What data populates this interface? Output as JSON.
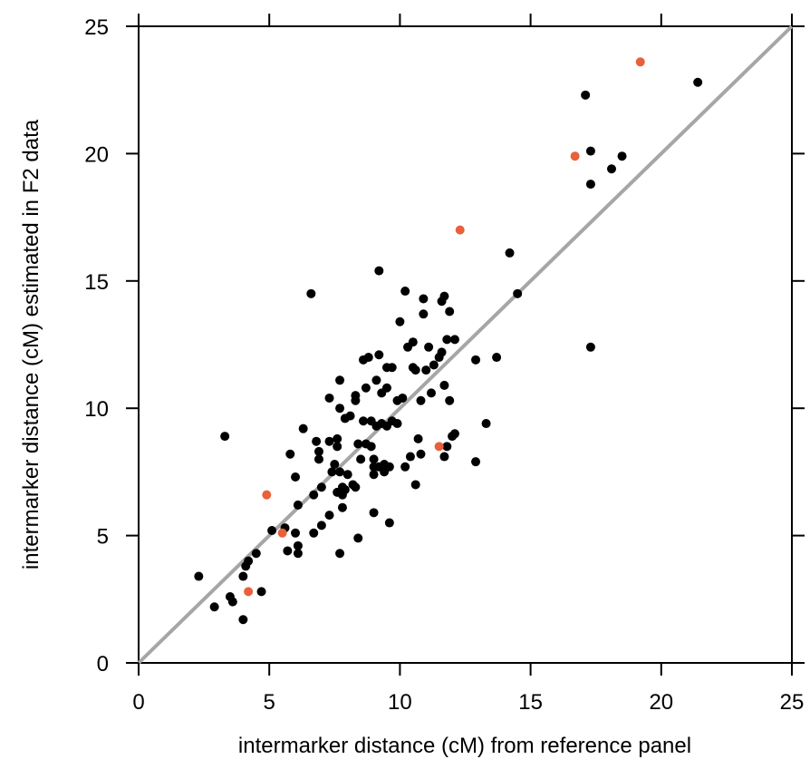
{
  "chart_data": {
    "type": "scatter",
    "title": "",
    "xlabel": "intermarker distance (cM) from reference panel",
    "ylabel": "intermarker distance (cM) estimated in F2 data",
    "xlim": [
      0,
      25
    ],
    "ylim": [
      0,
      25
    ],
    "xticks": [
      0,
      5,
      10,
      15,
      20,
      25
    ],
    "yticks": [
      0,
      5,
      10,
      15,
      20,
      25
    ],
    "xtick_labels": [
      "0",
      "5",
      "10",
      "15",
      "20",
      "25"
    ],
    "ytick_labels": [
      "0",
      "5",
      "10",
      "15",
      "20",
      "25"
    ],
    "grid": false,
    "reference_line": {
      "from": [
        0,
        0
      ],
      "to": [
        25,
        25
      ],
      "color": "#a6a6a6"
    },
    "series": [
      {
        "color": "#000000",
        "points": [
          [
            2.3,
            3.4
          ],
          [
            2.9,
            2.2
          ],
          [
            3.3,
            8.9
          ],
          [
            3.5,
            2.6
          ],
          [
            3.6,
            2.4
          ],
          [
            4.0,
            1.7
          ],
          [
            4.0,
            3.4
          ],
          [
            4.1,
            3.8
          ],
          [
            4.2,
            4.0
          ],
          [
            4.5,
            4.3
          ],
          [
            4.7,
            2.8
          ],
          [
            5.1,
            5.2
          ],
          [
            5.6,
            5.3
          ],
          [
            5.7,
            4.4
          ],
          [
            5.8,
            8.2
          ],
          [
            6.0,
            5.1
          ],
          [
            6.0,
            7.3
          ],
          [
            6.1,
            4.6
          ],
          [
            6.1,
            4.3
          ],
          [
            6.1,
            6.2
          ],
          [
            6.3,
            9.2
          ],
          [
            6.6,
            14.5
          ],
          [
            6.7,
            6.6
          ],
          [
            6.7,
            5.1
          ],
          [
            6.8,
            8.7
          ],
          [
            6.9,
            8.0
          ],
          [
            6.9,
            8.3
          ],
          [
            7.0,
            6.9
          ],
          [
            7.0,
            5.4
          ],
          [
            7.3,
            5.8
          ],
          [
            7.3,
            10.4
          ],
          [
            7.3,
            8.7
          ],
          [
            7.4,
            7.5
          ],
          [
            7.5,
            7.8
          ],
          [
            7.6,
            8.8
          ],
          [
            7.6,
            8.5
          ],
          [
            7.6,
            6.7
          ],
          [
            7.7,
            4.3
          ],
          [
            7.7,
            7.5
          ],
          [
            7.7,
            10.0
          ],
          [
            7.7,
            11.1
          ],
          [
            7.8,
            6.9
          ],
          [
            7.8,
            6.1
          ],
          [
            7.8,
            6.6
          ],
          [
            7.9,
            9.6
          ],
          [
            7.9,
            6.8
          ],
          [
            8.0,
            7.4
          ],
          [
            8.1,
            9.7
          ],
          [
            8.2,
            7.0
          ],
          [
            8.3,
            10.5
          ],
          [
            8.3,
            10.3
          ],
          [
            8.3,
            6.9
          ],
          [
            8.4,
            4.9
          ],
          [
            8.4,
            8.6
          ],
          [
            8.5,
            8.0
          ],
          [
            8.6,
            11.9
          ],
          [
            8.6,
            9.5
          ],
          [
            8.7,
            8.6
          ],
          [
            8.7,
            10.8
          ],
          [
            8.8,
            12.0
          ],
          [
            8.9,
            9.5
          ],
          [
            8.9,
            8.5
          ],
          [
            9.0,
            5.9
          ],
          [
            9.0,
            8.0
          ],
          [
            9.0,
            7.4
          ],
          [
            9.0,
            7.7
          ],
          [
            9.1,
            11.1
          ],
          [
            9.1,
            9.3
          ],
          [
            9.2,
            7.7
          ],
          [
            9.2,
            12.1
          ],
          [
            9.2,
            15.4
          ],
          [
            9.3,
            10.6
          ],
          [
            9.3,
            9.4
          ],
          [
            9.4,
            7.8
          ],
          [
            9.4,
            7.6
          ],
          [
            9.4,
            7.5
          ],
          [
            9.5,
            9.3
          ],
          [
            9.5,
            11.6
          ],
          [
            9.5,
            10.8
          ],
          [
            9.6,
            7.7
          ],
          [
            9.6,
            5.5
          ],
          [
            9.7,
            9.5
          ],
          [
            9.7,
            11.6
          ],
          [
            9.9,
            9.4
          ],
          [
            9.9,
            10.3
          ],
          [
            10.0,
            13.4
          ],
          [
            10.1,
            10.4
          ],
          [
            10.2,
            14.6
          ],
          [
            10.2,
            7.7
          ],
          [
            10.3,
            12.4
          ],
          [
            10.4,
            8.1
          ],
          [
            10.5,
            12.6
          ],
          [
            10.5,
            11.6
          ],
          [
            10.6,
            11.5
          ],
          [
            10.6,
            7.0
          ],
          [
            10.7,
            8.8
          ],
          [
            10.8,
            8.2
          ],
          [
            10.8,
            10.3
          ],
          [
            10.9,
            14.3
          ],
          [
            10.9,
            13.7
          ],
          [
            11.0,
            11.5
          ],
          [
            11.1,
            12.4
          ],
          [
            11.2,
            10.6
          ],
          [
            11.3,
            11.7
          ],
          [
            11.5,
            12.0
          ],
          [
            11.6,
            14.2
          ],
          [
            11.6,
            12.2
          ],
          [
            11.7,
            14.4
          ],
          [
            11.7,
            10.9
          ],
          [
            11.7,
            8.1
          ],
          [
            11.8,
            12.7
          ],
          [
            11.8,
            8.5
          ],
          [
            11.9,
            10.3
          ],
          [
            11.9,
            13.8
          ],
          [
            12.0,
            8.9
          ],
          [
            12.1,
            12.7
          ],
          [
            12.1,
            9.0
          ],
          [
            12.9,
            7.9
          ],
          [
            12.9,
            11.9
          ],
          [
            13.3,
            9.4
          ],
          [
            13.7,
            12.0
          ],
          [
            14.2,
            16.1
          ],
          [
            14.5,
            14.5
          ],
          [
            17.1,
            22.3
          ],
          [
            17.3,
            20.1
          ],
          [
            17.3,
            18.8
          ],
          [
            17.3,
            12.4
          ],
          [
            18.1,
            19.4
          ],
          [
            18.5,
            19.9
          ],
          [
            21.4,
            22.8
          ]
        ]
      },
      {
        "color": "#e8603c",
        "points": [
          [
            4.2,
            2.8
          ],
          [
            4.9,
            6.6
          ],
          [
            5.5,
            5.1
          ],
          [
            11.5,
            8.5
          ],
          [
            12.3,
            17.0
          ],
          [
            16.7,
            19.9
          ],
          [
            19.2,
            23.6
          ]
        ]
      }
    ]
  }
}
